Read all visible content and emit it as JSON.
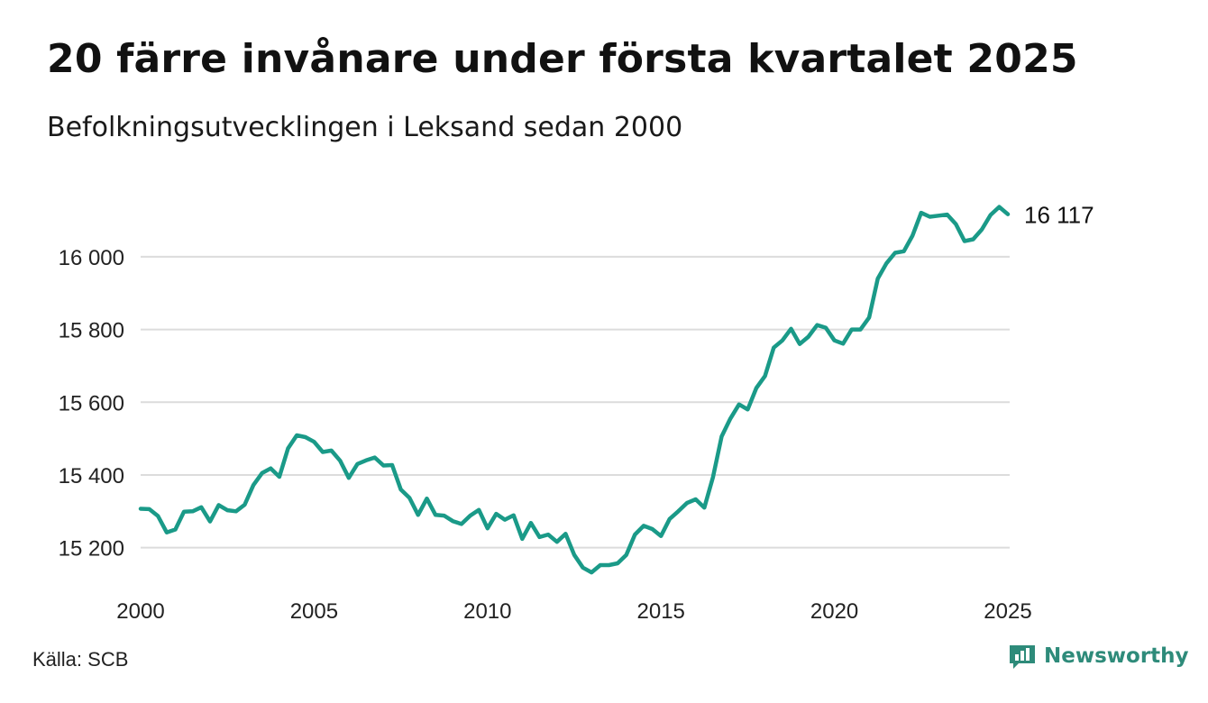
{
  "title": "20 färre invånare under första kvartalet 2025",
  "subtitle": "Befolkningsutvecklingen i Leksand sedan 2000",
  "source": "Källa: SCB",
  "brand": "Newsworthy",
  "colors": {
    "line": "#1a9a88",
    "grid": "#dcdcdc",
    "brand": "#2e8b7a"
  },
  "chart_data": {
    "type": "line",
    "title": "",
    "xlabel": "",
    "ylabel": "",
    "xlim": [
      2000,
      2025
    ],
    "ylim": [
      15090,
      16260
    ],
    "yticks": [
      15200,
      15400,
      15600,
      15800,
      16000
    ],
    "ytick_labels": [
      "15 200",
      "15 400",
      "15 600",
      "15 800",
      "16 000"
    ],
    "xticks": [
      2000,
      2005,
      2010,
      2015,
      2020,
      2025
    ],
    "xtick_labels": [
      "2000",
      "2005",
      "2010",
      "2015",
      "2020",
      "2025"
    ],
    "grid": "horizontal",
    "end_label": "16 117",
    "series": [
      {
        "x": [
          2000.0,
          2000.25,
          2000.5,
          2000.75,
          2001.0,
          2001.25,
          2001.5,
          2001.75,
          2002.0,
          2002.25,
          2002.5,
          2002.75,
          2003.0,
          2003.25,
          2003.5,
          2003.75,
          2004.0,
          2004.25,
          2004.5,
          2004.75,
          2005.0,
          2005.25,
          2005.5,
          2005.75,
          2006.0,
          2006.25,
          2006.5,
          2006.75,
          2007.0,
          2007.25,
          2007.5,
          2007.75,
          2008.0,
          2008.25,
          2008.5,
          2008.75,
          2009.0,
          2009.25,
          2009.5,
          2009.75,
          2010.0,
          2010.25,
          2010.5,
          2010.75,
          2011.0,
          2011.25,
          2011.5,
          2011.75,
          2012.0,
          2012.25,
          2012.5,
          2012.75,
          2013.0,
          2013.25,
          2013.5,
          2013.75,
          2014.0,
          2014.25,
          2014.5,
          2014.75,
          2015.0,
          2015.25,
          2015.5,
          2015.75,
          2016.0,
          2016.25,
          2016.5,
          2016.75,
          2017.0,
          2017.25,
          2017.5,
          2017.75,
          2018.0,
          2018.25,
          2018.5,
          2018.75,
          2019.0,
          2019.25,
          2019.5,
          2019.75,
          2020.0,
          2020.25,
          2020.5,
          2020.75,
          2021.0,
          2021.25,
          2021.5,
          2021.75,
          2022.0,
          2022.25,
          2022.5,
          2022.75,
          2023.0,
          2023.25,
          2023.5,
          2023.75,
          2024.0,
          2024.25,
          2024.5,
          2024.75,
          2025.0
        ],
        "values": [
          15307,
          15306,
          15287,
          15242,
          15250,
          15299,
          15300,
          15311,
          15272,
          15317,
          15303,
          15300,
          15318,
          15372,
          15405,
          15418,
          15395,
          15473,
          15509,
          15504,
          15491,
          15463,
          15467,
          15439,
          15392,
          15430,
          15440,
          15448,
          15426,
          15427,
          15360,
          15337,
          15290,
          15335,
          15290,
          15288,
          15273,
          15265,
          15288,
          15304,
          15253,
          15293,
          15277,
          15289,
          15224,
          15268,
          15229,
          15236,
          15216,
          15238,
          15180,
          15145,
          15132,
          15152,
          15152,
          15157,
          15180,
          15236,
          15260,
          15251,
          15232,
          15279,
          15300,
          15323,
          15333,
          15310,
          15394,
          15506,
          15555,
          15594,
          15580,
          15639,
          15672,
          15750,
          15770,
          15802,
          15760,
          15780,
          15812,
          15805,
          15770,
          15761,
          15800,
          15800,
          15833,
          15940,
          15982,
          16011,
          16015,
          16058,
          16121,
          16110,
          16113,
          16116,
          16090,
          16043,
          16048,
          16075,
          16115,
          16137,
          16117
        ]
      }
    ]
  }
}
